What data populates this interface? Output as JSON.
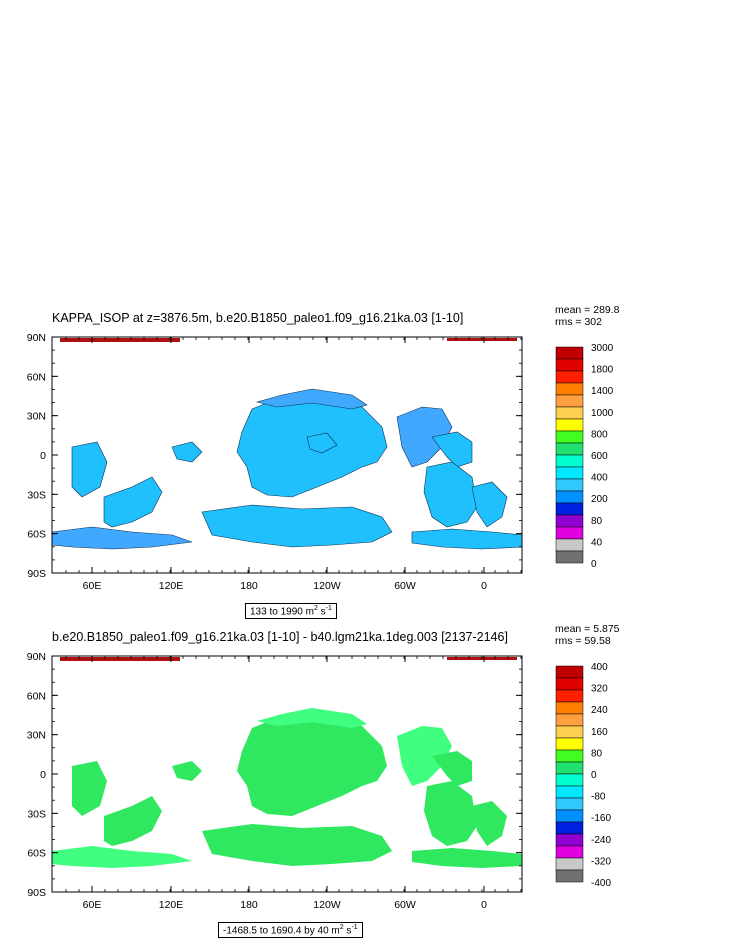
{
  "panels": [
    {
      "title": "KAPPA_ISOP at z=3876.5m, b.e20.B1850_paleo1.f09_g16.21ka.03 [1-10]",
      "mean": "mean = 289.8",
      "rms": "rms = 302",
      "range_text": "133 to 1990 m",
      "range_units_exp": "2",
      "range_units_tail": " s",
      "range_units_tail_exp": "-1",
      "lat_labels": [
        "90N",
        "60N",
        "30N",
        "0",
        "30S",
        "60S",
        "90S"
      ],
      "lon_labels": [
        "60E",
        "120E",
        "180",
        "120W",
        "60W",
        "0"
      ],
      "colorbar_labels": [
        "3000",
        "1800",
        "1400",
        "1000",
        "800",
        "600",
        "400",
        "200",
        "80",
        "40",
        "0"
      ],
      "colorbar_colors": [
        "#c00000",
        "#e00000",
        "#ff2000",
        "#ff8000",
        "#ffa040",
        "#ffd050",
        "#ffff00",
        "#40ff20",
        "#20e070",
        "#00ffd0",
        "#00e8ff",
        "#30c8ff",
        "#0090ff",
        "#0020e0",
        "#9000d0",
        "#e000e0",
        "#c8c8c8",
        "#707070"
      ],
      "fill_color": "#20c0ff",
      "patch_color": "#40a8ff"
    },
    {
      "title": "b.e20.B1850_paleo1.f09_g16.21ka.03 [1-10] - b40.lgm21ka.1deg.003 [2137-2146]",
      "mean": "mean = 5.875",
      "rms": "rms = 59.58",
      "range_text": "-1468.5 to 1690.4 by 40 m",
      "range_units_exp": "2",
      "range_units_tail": " s",
      "range_units_tail_exp": "-1",
      "lat_labels": [
        "90N",
        "60N",
        "30N",
        "0",
        "30S",
        "60S",
        "90S"
      ],
      "lon_labels": [
        "60E",
        "120E",
        "180",
        "120W",
        "60W",
        "0"
      ],
      "colorbar_labels": [
        "400",
        "320",
        "240",
        "160",
        "80",
        "0",
        "-80",
        "-160",
        "-240",
        "-320",
        "-400"
      ],
      "colorbar_colors": [
        "#c00000",
        "#e00000",
        "#ff2000",
        "#ff8000",
        "#ffa040",
        "#ffd050",
        "#ffff00",
        "#40ff20",
        "#20e070",
        "#00ffd0",
        "#00e8ff",
        "#30c8ff",
        "#0090ff",
        "#0020e0",
        "#9000d0",
        "#e000e0",
        "#c8c8c8",
        "#707070"
      ],
      "fill_color": "#30e860",
      "patch_color": "#40ff80"
    }
  ]
}
